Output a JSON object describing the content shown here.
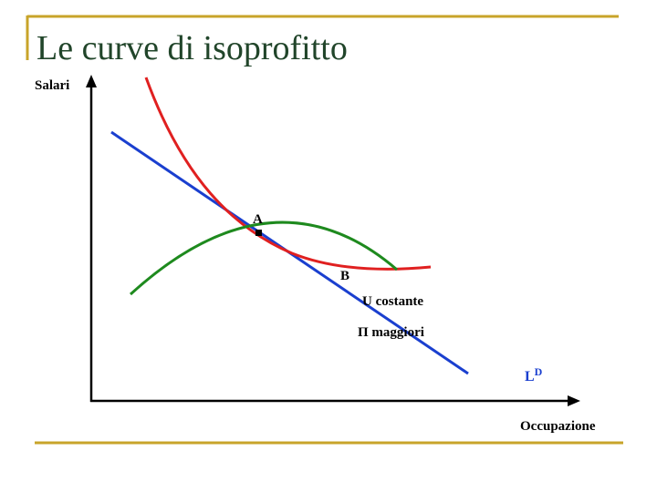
{
  "header": {
    "title": "Le curve di isoprofitto"
  },
  "axes": {
    "y_label": "Salari",
    "x_label": "Occupazione"
  },
  "labels": {
    "point_a": "A",
    "point_b": "B",
    "u_curve": "U costante",
    "profit": "Π maggiori",
    "demand": {
      "main": "L",
      "superscript": "D"
    }
  }
}
